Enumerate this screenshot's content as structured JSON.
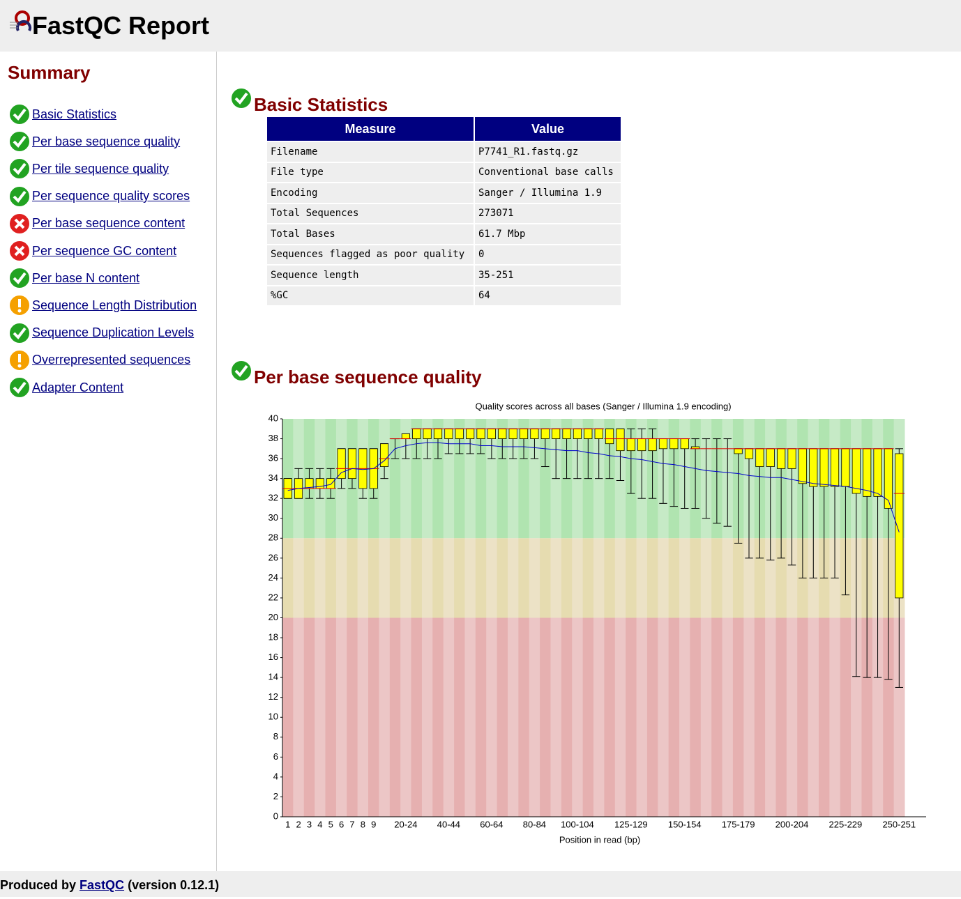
{
  "header": {
    "title": "FastQC Report"
  },
  "summary": {
    "title": "Summary",
    "items": [
      {
        "label": "Basic Statistics",
        "status": "pass"
      },
      {
        "label": "Per base sequence quality",
        "status": "pass"
      },
      {
        "label": "Per tile sequence quality",
        "status": "pass"
      },
      {
        "label": "Per sequence quality scores",
        "status": "pass"
      },
      {
        "label": "Per base sequence content",
        "status": "fail"
      },
      {
        "label": "Per sequence GC content",
        "status": "fail"
      },
      {
        "label": "Per base N content",
        "status": "pass"
      },
      {
        "label": "Sequence Length Distribution",
        "status": "warn"
      },
      {
        "label": "Sequence Duplication Levels",
        "status": "pass"
      },
      {
        "label": "Overrepresented sequences",
        "status": "warn"
      },
      {
        "label": "Adapter Content",
        "status": "pass"
      }
    ]
  },
  "basic_statistics": {
    "title": "Basic Statistics",
    "status": "pass",
    "table": {
      "header": [
        "Measure",
        "Value"
      ],
      "rows": [
        [
          "Filename",
          "P7741_R1.fastq.gz"
        ],
        [
          "File type",
          "Conventional base calls"
        ],
        [
          "Encoding",
          "Sanger / Illumina 1.9"
        ],
        [
          "Total Sequences",
          "273071"
        ],
        [
          "Total Bases",
          "61.7 Mbp"
        ],
        [
          "Sequences flagged as poor quality",
          "0"
        ],
        [
          "Sequence length",
          "35-251"
        ],
        [
          "%GC",
          "64"
        ]
      ]
    }
  },
  "per_base_quality": {
    "title": "Per base sequence quality",
    "status": "pass"
  },
  "chart_data": {
    "type": "boxplot",
    "title": "Quality scores across all bases (Sanger / Illumina 1.9 encoding)",
    "x_label": "Position in read (bp)",
    "categories": [
      "1",
      "2",
      "3",
      "4",
      "5",
      "6",
      "7",
      "8",
      "9",
      null,
      null,
      "20-24",
      null,
      null,
      null,
      "40-44",
      null,
      null,
      null,
      "60-64",
      null,
      null,
      null,
      "80-84",
      null,
      null,
      null,
      "100-104",
      null,
      null,
      null,
      null,
      "125-129",
      null,
      null,
      null,
      null,
      "150-154",
      null,
      null,
      null,
      null,
      "175-179",
      null,
      null,
      null,
      null,
      "200-204",
      null,
      null,
      null,
      null,
      "225-229",
      null,
      null,
      null,
      null,
      "250-251"
    ],
    "whisker_low": [
      32,
      32,
      32,
      32,
      32,
      33,
      33,
      32,
      32,
      34,
      36,
      36,
      36,
      36,
      36,
      36.5,
      36.5,
      36.5,
      36.5,
      36,
      36,
      36,
      36,
      36,
      35.2,
      34,
      34,
      34,
      34,
      34,
      34,
      33.8,
      32.5,
      32,
      32,
      31.5,
      31.2,
      31,
      31,
      30,
      29.5,
      29.2,
      27.5,
      26,
      26,
      25.8,
      26,
      25.3,
      24,
      24,
      24,
      24,
      22.3,
      14.1,
      14,
      14,
      13.8,
      13
    ],
    "q1": [
      32,
      32,
      33,
      33,
      33,
      34,
      34,
      33,
      33,
      35.2,
      38,
      38,
      38,
      38,
      38,
      38,
      38,
      38,
      38,
      38,
      38,
      38,
      38,
      38,
      38,
      38,
      38,
      38,
      38,
      38,
      37.5,
      36.8,
      36.8,
      36.8,
      36.8,
      37,
      37,
      37,
      37,
      37,
      37,
      37,
      36.5,
      36,
      35.2,
      35.2,
      35,
      35,
      33.5,
      33.2,
      33.2,
      33.2,
      33.2,
      32.5,
      32.2,
      32.2,
      31,
      22
    ],
    "median": [
      33,
      33,
      33,
      33,
      33,
      35,
      35,
      35,
      35,
      36,
      38,
      38,
      39,
      39,
      39,
      39,
      39,
      39,
      39,
      39,
      39,
      39,
      39,
      39,
      39,
      39,
      39,
      39,
      39,
      39,
      38,
      38,
      38,
      38,
      38,
      38,
      38,
      38,
      37,
      37,
      37,
      37,
      37,
      37,
      37,
      37,
      37,
      37,
      37,
      37,
      37,
      37,
      37,
      37,
      37,
      37,
      37,
      32.5
    ],
    "q3": [
      34,
      34,
      34,
      34,
      34,
      37,
      37,
      37,
      37,
      37.5,
      38,
      38.5,
      39,
      39,
      39,
      39,
      39,
      39,
      39,
      39,
      39,
      39,
      39,
      39,
      39,
      39,
      39,
      39,
      39,
      39,
      39,
      39,
      38,
      38,
      38,
      38,
      38,
      38,
      37.2,
      37,
      37,
      37,
      37,
      37,
      37,
      37,
      37,
      37,
      37,
      37,
      37,
      37,
      37,
      37,
      37,
      37,
      37,
      36.5
    ],
    "whisker_high": [
      34,
      35,
      35,
      35,
      35,
      37,
      37,
      37,
      37,
      37.5,
      38,
      38.5,
      39,
      39,
      39,
      39,
      39,
      39,
      39,
      39,
      39,
      39,
      39,
      39,
      39,
      39,
      39,
      39,
      39,
      39,
      39,
      39,
      39,
      39,
      39,
      38,
      38,
      38,
      38,
      38,
      38,
      38,
      37,
      37,
      37,
      37,
      37,
      37,
      37,
      37,
      37,
      37,
      37,
      37,
      37,
      37,
      37,
      37
    ],
    "mean": [
      32.8,
      33.0,
      33.1,
      33.2,
      33.4,
      34.6,
      35.0,
      34.9,
      35.0,
      35.8,
      37.0,
      37.3,
      37.5,
      37.6,
      37.6,
      37.5,
      37.5,
      37.5,
      37.3,
      37.3,
      37.2,
      37.2,
      37.2,
      37.1,
      37.0,
      36.9,
      36.8,
      36.8,
      36.6,
      36.5,
      36.3,
      36.2,
      36.0,
      35.9,
      35.7,
      35.5,
      35.4,
      35.2,
      35.0,
      34.8,
      34.7,
      34.6,
      34.5,
      34.3,
      34.2,
      34.1,
      34.1,
      33.9,
      33.7,
      33.5,
      33.4,
      33.3,
      33.2,
      33.0,
      32.8,
      32.5,
      31.8,
      28.6
    ],
    "box_color": "#ffff00",
    "median_color": "#dd0000",
    "mean_color": "#0000cc",
    "zones": [
      {
        "from": 28,
        "to": 40,
        "colors": [
          "#b0e4b0",
          "#c6eac6"
        ]
      },
      {
        "from": 20,
        "to": 28,
        "colors": [
          "#e6dcb0",
          "#ece2c6"
        ]
      },
      {
        "from": 0,
        "to": 20,
        "colors": [
          "#e6b0b0",
          "#ecc6c6"
        ]
      }
    ],
    "ylim": [
      0,
      40
    ],
    "yticks": [
      0,
      2,
      4,
      6,
      8,
      10,
      12,
      14,
      16,
      18,
      20,
      22,
      24,
      26,
      28,
      30,
      32,
      34,
      36,
      38,
      40
    ]
  },
  "footer": {
    "prefix": "Produced by",
    "link": "FastQC",
    "suffix": "(version 0.12.1)"
  }
}
